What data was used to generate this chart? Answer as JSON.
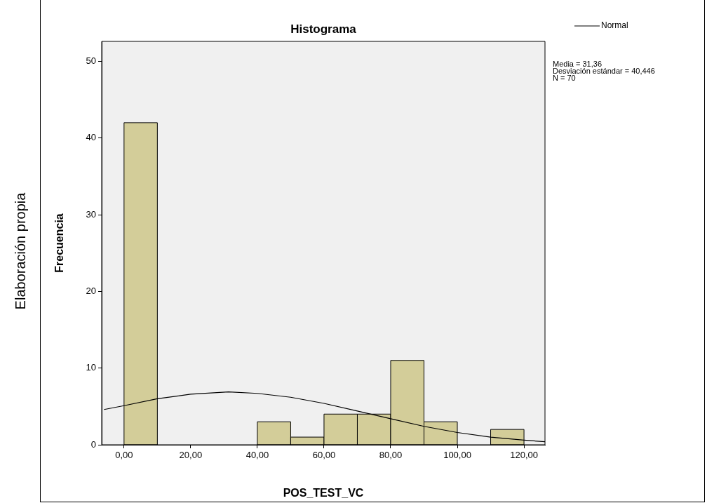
{
  "chart_data": {
    "type": "histogram",
    "title": "Histograma",
    "xlabel": "POS_TEST_VC",
    "ylabel": "Frecuencia",
    "bins": [
      0,
      10,
      40,
      50,
      60,
      70,
      80,
      90,
      100,
      110,
      120
    ],
    "values": [
      42,
      0,
      3,
      1,
      4,
      4,
      11,
      3,
      0,
      2
    ],
    "color": "#d3cd99",
    "series": [
      {
        "type": "line",
        "name": "Normal",
        "color": "#000000",
        "x": [
          -6,
          0,
          10,
          20,
          31.36,
          40,
          50,
          60,
          70,
          80,
          90,
          100,
          110,
          120,
          126.3
        ],
        "values": [
          4.6,
          5.1,
          6.0,
          6.6,
          6.9,
          6.7,
          6.2,
          5.4,
          4.4,
          3.4,
          2.4,
          1.6,
          1.0,
          0.6,
          0.4
        ]
      }
    ],
    "xlim": [
      -6.7,
      126.3
    ],
    "xticks": [
      {
        "value": 0,
        "label": "0,00"
      },
      {
        "value": 20,
        "label": "20,00"
      },
      {
        "value": 40,
        "label": "40,00"
      },
      {
        "value": 60,
        "label": "60,00"
      },
      {
        "value": 80,
        "label": "80,00"
      },
      {
        "value": 100,
        "label": "100,00"
      },
      {
        "value": 120,
        "label": "120,00"
      }
    ],
    "ylim": [
      0,
      52.6
    ],
    "yticks": [
      0,
      10,
      20,
      30,
      40,
      50
    ],
    "grid": false,
    "legend": "top right",
    "annotations": [
      "Media = 31,36",
      "Desviación estándar = 40,446",
      "N = 70",
      "Elaboración propia"
    ]
  }
}
